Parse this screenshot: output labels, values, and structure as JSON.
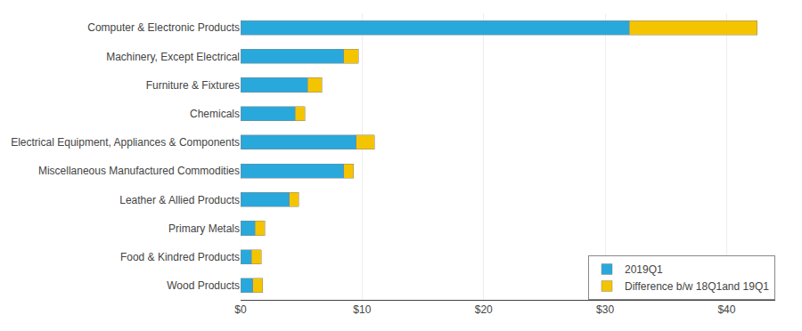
{
  "chart_data": {
    "type": "bar",
    "orientation": "horizontal",
    "stacked": true,
    "categories": [
      "Computer & Electronic Products",
      "Machinery, Except Electrical",
      "Furniture & Fixtures",
      "Chemicals",
      "Electrical Equipment, Appliances & Components",
      "Miscellaneous Manufactured Commodities",
      "Leather & Allied Products",
      "Primary Metals",
      "Food & Kindred Products",
      "Wood Products"
    ],
    "series": [
      {
        "name": "2019Q1",
        "color": "#29A8DC",
        "values": [
          32.0,
          8.5,
          5.5,
          4.5,
          9.5,
          8.5,
          4.0,
          1.2,
          0.9,
          1.0
        ]
      },
      {
        "name": "Difference b/w 18Q1and 19Q1",
        "color": "#F5C400",
        "values": [
          10.5,
          1.2,
          1.2,
          0.8,
          1.5,
          0.8,
          0.8,
          0.8,
          0.8,
          0.8
        ]
      }
    ],
    "xlim": [
      0,
      44
    ],
    "xticks": [
      {
        "value": 0,
        "label": "$0"
      },
      {
        "value": 10,
        "label": "$10"
      },
      {
        "value": 20,
        "label": "$20"
      },
      {
        "value": 30,
        "label": "$30"
      },
      {
        "value": 40,
        "label": "$40"
      }
    ],
    "grid": true,
    "legend": "lower right"
  }
}
